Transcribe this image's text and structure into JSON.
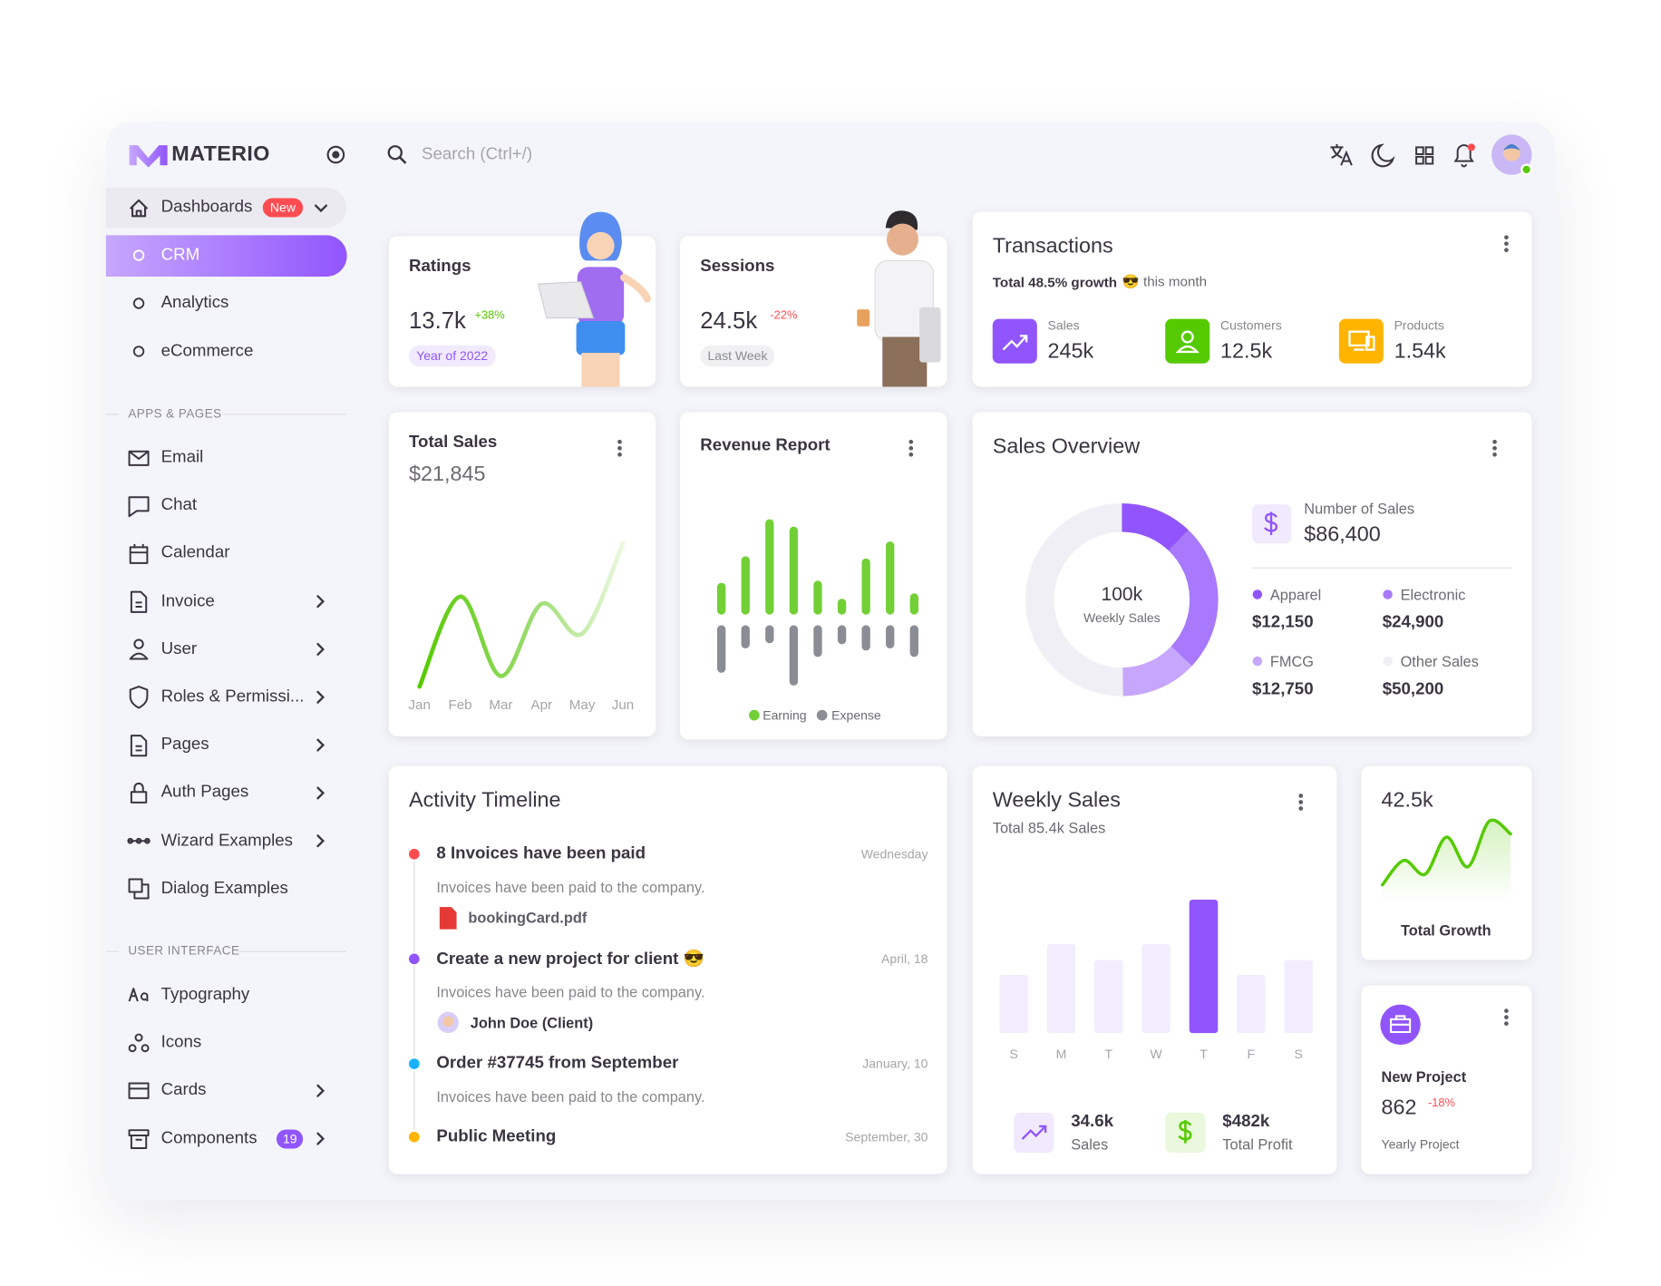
{
  "brand": "MATERIO",
  "search": "Search (Ctrl+/)",
  "nav": {
    "dashboards": {
      "label": "Dashboards",
      "badge": "New",
      "items": [
        "CRM",
        "Analytics",
        "eCommerce"
      ]
    },
    "sections": [
      {
        "title": "APPS & PAGES",
        "items": [
          {
            "label": "Email"
          },
          {
            "label": "Chat"
          },
          {
            "label": "Calendar"
          },
          {
            "label": "Invoice",
            "expandable": true
          },
          {
            "label": "User",
            "expandable": true
          },
          {
            "label": "Roles & Permissi...",
            "expandable": true
          },
          {
            "label": "Pages",
            "expandable": true
          },
          {
            "label": "Auth Pages",
            "expandable": true
          },
          {
            "label": "Wizard Examples",
            "expandable": true
          },
          {
            "label": "Dialog Examples"
          }
        ]
      },
      {
        "title": "USER INTERFACE",
        "items": [
          {
            "label": "Typography"
          },
          {
            "label": "Icons"
          },
          {
            "label": "Cards",
            "expandable": true
          },
          {
            "label": "Components",
            "badge": 19,
            "expandable": true
          }
        ]
      }
    ]
  },
  "ratings": {
    "title": "Ratings",
    "value": "13.7k",
    "change": "+38%",
    "chip": "Year of 2022"
  },
  "sessions": {
    "title": "Sessions",
    "value": "24.5k",
    "change": "-22%",
    "chip": "Last Week"
  },
  "transactions": {
    "title": "Transactions",
    "growth": "Total 48.5% growth",
    "note": "😎 this month",
    "stats": [
      {
        "label": "Sales",
        "value": "245k",
        "color": "#9155fd"
      },
      {
        "label": "Customers",
        "value": "12.5k",
        "color": "#56ca00"
      },
      {
        "label": "Products",
        "value": "1.54k",
        "color": "#ffb400"
      }
    ]
  },
  "activity": {
    "title": "Activity Timeline",
    "items": [
      {
        "title": "8 Invoices have been paid",
        "date": "Wednesday",
        "text": "Invoices have been paid to the company.",
        "attachment": "bookingCard.pdf",
        "color": "#ff4c51"
      },
      {
        "title": "Create a new project for client 😎",
        "date": "April, 18",
        "text": "Invoices have been paid to the company.",
        "person": "John Doe (Client)",
        "color": "#9155fd"
      },
      {
        "title": "Order #37745 from September",
        "date": "January, 10",
        "text": "Invoices have been paid to the company.",
        "color": "#16b1ff"
      },
      {
        "title": "Public Meeting",
        "date": "September, 30",
        "color": "#ffb400"
      }
    ]
  },
  "project": {
    "title": "New Project",
    "value": "862",
    "change": "-18%",
    "caption": "Yearly Project"
  },
  "chart_data": [
    {
      "type": "line",
      "title": "Total Sales",
      "subtitle": "$21,845",
      "categories": [
        "Jan",
        "Feb",
        "Mar",
        "Apr",
        "May",
        "Jun"
      ],
      "values": [
        0,
        85,
        10,
        78,
        50,
        135
      ],
      "ylim": [
        0,
        150
      ],
      "color": "#56ca00"
    },
    {
      "type": "bar",
      "title": "Revenue Report",
      "series": [
        {
          "name": "Earning",
          "color": "#72d036",
          "values": [
            30,
            55,
            90,
            83,
            32,
            15,
            53,
            69,
            20
          ]
        },
        {
          "name": "Expense",
          "color": "#8a8d93",
          "values": [
            -45,
            -22,
            -17,
            -57,
            -30,
            -18,
            -24,
            -22,
            -30
          ]
        }
      ]
    },
    {
      "type": "doughnut",
      "title": "Sales Overview",
      "center_value": "100k",
      "center_label": "Weekly Sales",
      "total_label": "Number of Sales",
      "total": "$86,400",
      "categories": [
        "Apparel",
        "Electronic",
        "FMCG",
        "Other Sales"
      ],
      "values": [
        12150,
        24900,
        12750,
        50200
      ],
      "value_labels": [
        "$12,150",
        "$24,900",
        "$12,750",
        "$50,200"
      ],
      "colors": [
        "#9155fd",
        "#a879fc",
        "#c7a6fd",
        "#f0eff5"
      ]
    },
    {
      "type": "bar",
      "title": "Weekly Sales",
      "subtitle": "Total 85.4k Sales",
      "categories": [
        "S",
        "M",
        "T",
        "W",
        "T",
        "F",
        "S"
      ],
      "values": [
        55,
        84,
        69,
        84,
        126,
        55,
        69
      ],
      "ylim": [
        0,
        130
      ],
      "colors": [
        "#f2edfe",
        "#f2edfe",
        "#f2edfe",
        "#f2edfe",
        "#9155fd",
        "#f2edfe",
        "#f2edfe"
      ],
      "stats": [
        {
          "value": "34.6k",
          "label": "Sales"
        },
        {
          "value": "$482k",
          "label": "Total Profit"
        }
      ]
    },
    {
      "type": "line",
      "title": "Total Growth",
      "subtitle": "42.5k",
      "values": [
        15,
        38,
        25,
        60,
        32,
        75,
        63
      ],
      "ylim": [
        0,
        80
      ],
      "color": "#56ca00"
    }
  ]
}
